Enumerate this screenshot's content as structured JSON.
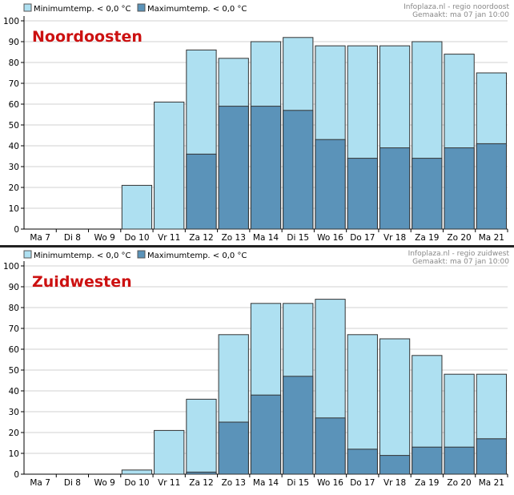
{
  "chart_data": [
    {
      "type": "bar",
      "title": "Noordoosten",
      "source": "Infoplaza.nl - regio noordoost",
      "made": "Gemaakt: ma 07 jan 10:00",
      "categories": [
        "Ma 7",
        "Di 8",
        "Wo 9",
        "Do 10",
        "Vr 11",
        "Za 12",
        "Zo 13",
        "Ma 14",
        "Di 15",
        "Wo 16",
        "Do 17",
        "Vr 18",
        "Za 19",
        "Zo 20",
        "Ma 21"
      ],
      "series": [
        {
          "name": "Minimumtemp. < 0,0 °C",
          "color": "#aee0f1",
          "values": [
            0,
            0,
            0,
            21,
            61,
            86,
            82,
            90,
            92,
            88,
            88,
            88,
            90,
            84,
            75
          ]
        },
        {
          "name": "Maximumtemp. < 0,0 °C",
          "color": "#5b93b9",
          "values": [
            0,
            0,
            0,
            0,
            0,
            36,
            59,
            59,
            57,
            43,
            34,
            39,
            34,
            39,
            41
          ]
        }
      ],
      "ylim": [
        0,
        100
      ],
      "yticks": [
        0,
        10,
        20,
        30,
        40,
        50,
        60,
        70,
        80,
        90,
        100
      ],
      "legend": "top-left",
      "grid": true
    },
    {
      "type": "bar",
      "title": "Zuidwesten",
      "source": "Infoplaza.nl - regio zuidwest",
      "made": "Gemaakt: ma 07 jan 10:00",
      "categories": [
        "Ma 7",
        "Di 8",
        "Wo 9",
        "Do 10",
        "Vr 11",
        "Za 12",
        "Zo 13",
        "Ma 14",
        "Di 15",
        "Wo 16",
        "Do 17",
        "Vr 18",
        "Za 19",
        "Zo 20",
        "Ma 21"
      ],
      "series": [
        {
          "name": "Minimumtemp. < 0,0 °C",
          "color": "#aee0f1",
          "values": [
            0,
            0,
            0,
            2,
            21,
            36,
            67,
            82,
            82,
            84,
            67,
            65,
            57,
            48,
            48
          ]
        },
        {
          "name": "Maximumtemp. < 0,0 °C",
          "color": "#5b93b9",
          "values": [
            0,
            0,
            0,
            0,
            0,
            1,
            25,
            38,
            47,
            27,
            12,
            9,
            13,
            13,
            17
          ]
        }
      ],
      "ylim": [
        0,
        100
      ],
      "yticks": [
        0,
        10,
        20,
        30,
        40,
        50,
        60,
        70,
        80,
        90,
        100
      ],
      "legend": "top-left",
      "grid": true
    }
  ]
}
